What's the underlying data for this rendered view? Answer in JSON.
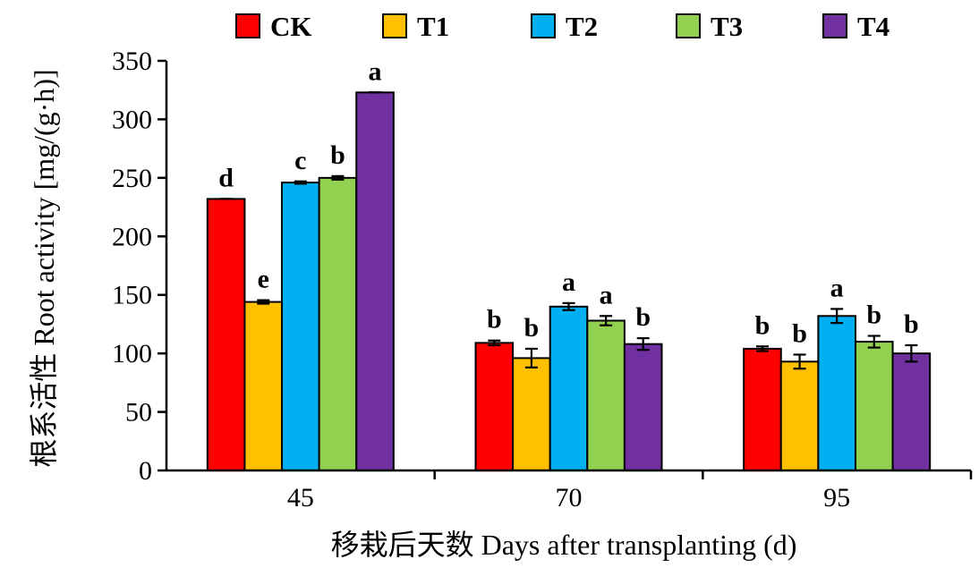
{
  "chart_data": {
    "type": "bar",
    "title": "",
    "xlabel": "移栽后天数 Days after transplanting (d)",
    "ylabel_cn": "根系活性",
    "ylabel_en": "Root activity [mg/(g·h)]",
    "ylim": [
      0,
      350
    ],
    "yticks": [
      0,
      50,
      100,
      150,
      200,
      250,
      300,
      350
    ],
    "categories": [
      "45",
      "70",
      "95"
    ],
    "legend_position": "top",
    "series": [
      {
        "name": "CK",
        "color": "#ff0000",
        "values": [
          232,
          109,
          104
        ],
        "errors": [
          0,
          2,
          2
        ],
        "letters": [
          "d",
          "b",
          "b"
        ]
      },
      {
        "name": "T1",
        "color": "#ffc000",
        "values": [
          144,
          96,
          93
        ],
        "errors": [
          1.5,
          8,
          6
        ],
        "letters": [
          "e",
          "b",
          "b"
        ]
      },
      {
        "name": "T2",
        "color": "#00b0f0",
        "values": [
          246,
          140,
          132
        ],
        "errors": [
          1,
          3,
          6
        ],
        "letters": [
          "c",
          "a",
          "a"
        ]
      },
      {
        "name": "T3",
        "color": "#92d050",
        "values": [
          250,
          128,
          110
        ],
        "errors": [
          1.5,
          4,
          5
        ],
        "letters": [
          "b",
          "a",
          "b"
        ]
      },
      {
        "name": "T4",
        "color": "#7030a0",
        "values": [
          323,
          108,
          100
        ],
        "errors": [
          0,
          5,
          7
        ],
        "letters": [
          "a",
          "b",
          "b"
        ]
      }
    ]
  }
}
